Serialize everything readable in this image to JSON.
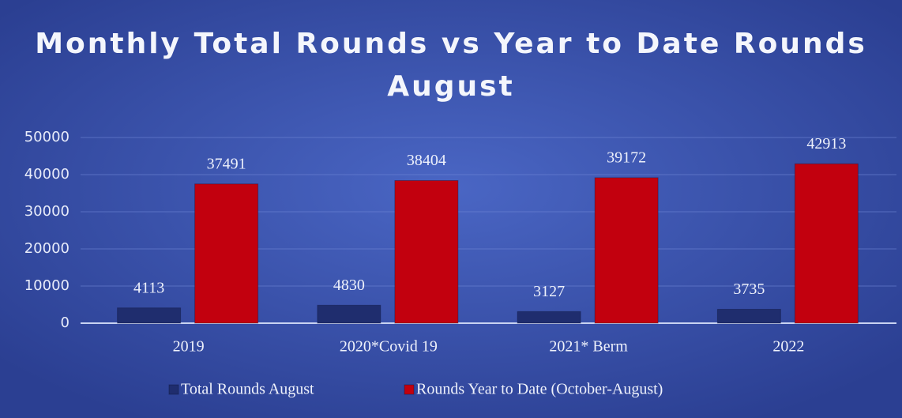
{
  "chart_data": {
    "type": "bar",
    "title": [
      "Monthly Total Rounds vs Year to Date Rounds",
      "August"
    ],
    "categories": [
      "2019",
      "2020*Covid 19",
      "2021* Berm",
      "2022"
    ],
    "series": [
      {
        "name": "Total Rounds August",
        "color": "#1f2d6e",
        "values": [
          4113,
          4830,
          3127,
          3735
        ]
      },
      {
        "name": "Rounds Year to Date (October-August)",
        "color": "#c2000e",
        "values": [
          37491,
          38404,
          39172,
          42913
        ]
      }
    ],
    "ylim": [
      0,
      50000
    ],
    "yticks": [
      0,
      10000,
      20000,
      30000,
      40000,
      50000
    ],
    "grid": true,
    "legend": "bottom"
  }
}
